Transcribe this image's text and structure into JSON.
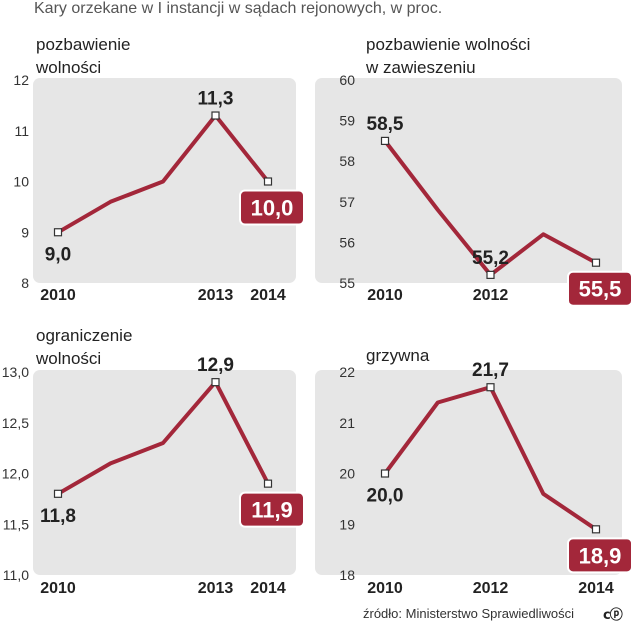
{
  "title": "Kary orzekane w I instancji w sądach rejonowych, w proc.",
  "source": "źródło: Ministerstwo Sprawiedliwości",
  "license_mark": "cc",
  "colors": {
    "line": "#a3273a",
    "plot_bg": "#e6e6e6",
    "highlight_bg": "#a3273a"
  },
  "chart_data": [
    {
      "type": "line",
      "title_lines": [
        "pozbawienie",
        "wolności"
      ],
      "x": [
        2010,
        2011,
        2012,
        2013,
        2014
      ],
      "values": [
        9.0,
        9.6,
        10.0,
        11.3,
        10.0
      ],
      "ylim": [
        8,
        12
      ],
      "yticks": [
        "8",
        "9",
        "10",
        "11",
        "12"
      ],
      "yticks_values": [
        8,
        9,
        10,
        11,
        12
      ],
      "xticks": [
        "2010",
        "2013",
        "2014"
      ],
      "xticks_values": [
        2010,
        2013,
        2014
      ],
      "labels": [
        {
          "index": 0,
          "text": "9,0",
          "pos": "below"
        },
        {
          "index": 3,
          "text": "11,3",
          "pos": "above"
        },
        {
          "index": 4,
          "text": "10,0",
          "pos": "highlight"
        }
      ]
    },
    {
      "type": "line",
      "title_lines": [
        "pozbawienie wolności",
        "w zawieszeniu"
      ],
      "x": [
        2010,
        2011,
        2012,
        2013,
        2014
      ],
      "values": [
        58.5,
        56.8,
        55.2,
        56.2,
        55.5
      ],
      "ylim": [
        55,
        60
      ],
      "yticks": [
        "55",
        "56",
        "57",
        "58",
        "59",
        "60"
      ],
      "yticks_values": [
        55,
        56,
        57,
        58,
        59,
        60
      ],
      "xticks": [
        "2010",
        "2012",
        "2014"
      ],
      "xticks_values": [
        2010,
        2012,
        2014
      ],
      "labels": [
        {
          "index": 0,
          "text": "58,5",
          "pos": "above"
        },
        {
          "index": 2,
          "text": "55,2",
          "pos": "above"
        },
        {
          "index": 4,
          "text": "55,5",
          "pos": "highlight"
        }
      ]
    },
    {
      "type": "line",
      "title_lines": [
        "ograniczenie",
        "wolności"
      ],
      "x": [
        2010,
        2011,
        2012,
        2013,
        2014
      ],
      "values": [
        11.8,
        12.1,
        12.3,
        12.9,
        11.9
      ],
      "ylim": [
        11.0,
        13.0
      ],
      "yticks": [
        "11,0",
        "11,5",
        "12,0",
        "12,5",
        "13,0"
      ],
      "yticks_values": [
        11.0,
        11.5,
        12.0,
        12.5,
        13.0
      ],
      "xticks": [
        "2010",
        "2013",
        "2014"
      ],
      "xticks_values": [
        2010,
        2013,
        2014
      ],
      "labels": [
        {
          "index": 0,
          "text": "11,8",
          "pos": "below"
        },
        {
          "index": 3,
          "text": "12,9",
          "pos": "above"
        },
        {
          "index": 4,
          "text": "11,9",
          "pos": "highlight"
        }
      ]
    },
    {
      "type": "line",
      "title_lines": [
        "grzywna"
      ],
      "x": [
        2010,
        2011,
        2012,
        2013,
        2014
      ],
      "values": [
        20.0,
        21.4,
        21.7,
        19.6,
        18.9
      ],
      "ylim": [
        18,
        22
      ],
      "yticks": [
        "18",
        "19",
        "20",
        "21",
        "22"
      ],
      "yticks_values": [
        18,
        19,
        20,
        21,
        22
      ],
      "xticks": [
        "2010",
        "2012",
        "2014"
      ],
      "xticks_values": [
        2010,
        2012,
        2014
      ],
      "labels": [
        {
          "index": 0,
          "text": "20,0",
          "pos": "below"
        },
        {
          "index": 2,
          "text": "21,7",
          "pos": "above"
        },
        {
          "index": 4,
          "text": "18,9",
          "pos": "highlight"
        }
      ]
    }
  ]
}
